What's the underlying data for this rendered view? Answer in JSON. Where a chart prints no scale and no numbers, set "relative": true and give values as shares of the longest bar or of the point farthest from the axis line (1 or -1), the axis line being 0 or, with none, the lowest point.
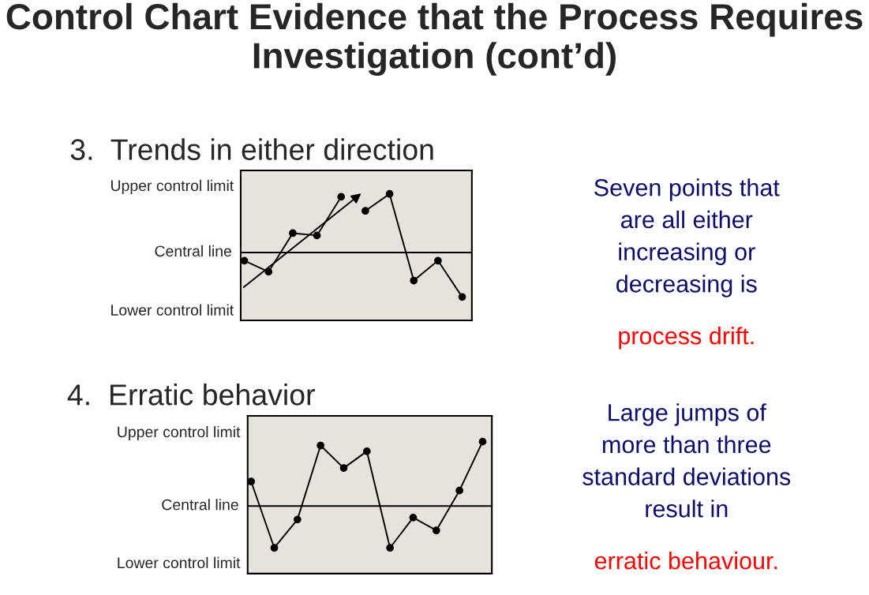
{
  "chart_data": [
    {
      "type": "line",
      "title": "Control Chart Evidence that the Process Requires Investigation (cont’d)",
      "subtitle": "3.  Trends in either direction",
      "relative": true,
      "categories": [
        null,
        null,
        null,
        null,
        null,
        null,
        null,
        null,
        null,
        null
      ],
      "series": [
        {
          "color": "#000000",
          "values": [
            -0.14,
            -0.33,
            0.33,
            0.29,
            0.95,
            null,
            null,
            null,
            null,
            null
          ]
        },
        {
          "color": "#000000",
          "values": [
            null,
            null,
            null,
            null,
            null,
            0.71,
            1,
            -0.48,
            -0.14,
            -0.76
          ]
        }
      ],
      "marker": "circle",
      "ref_lines": [
        {
          "axis": "y",
          "value": 0,
          "label": "Central line",
          "color": "#000000"
        }
      ],
      "annotations": [
        "Upper control limit",
        "Lower control limit",
        "Seven points that\nare all either\nincreasing or\ndecreasing is",
        "process drift."
      ]
    },
    {
      "type": "line",
      "subtitle": "4.  Erratic behavior",
      "relative": true,
      "categories": [
        null,
        null,
        null,
        null,
        null,
        null,
        null,
        null,
        null,
        null,
        null
      ],
      "series": [
        {
          "color": "#000000",
          "values": [
            0.38,
            -0.65,
            -0.21,
            0.94,
            0.59,
            0.85,
            -0.65,
            -0.18,
            -0.38,
            0.24,
            1
          ]
        }
      ],
      "marker": "circle",
      "ref_lines": [
        {
          "axis": "y",
          "value": 0,
          "label": "Central line",
          "color": "#000000"
        }
      ],
      "annotations": [
        "Upper control limit",
        "Lower control limit",
        "Large jumps of\nmore than three\nstandard deviations\nresult in",
        "erratic behaviour."
      ]
    }
  ]
}
